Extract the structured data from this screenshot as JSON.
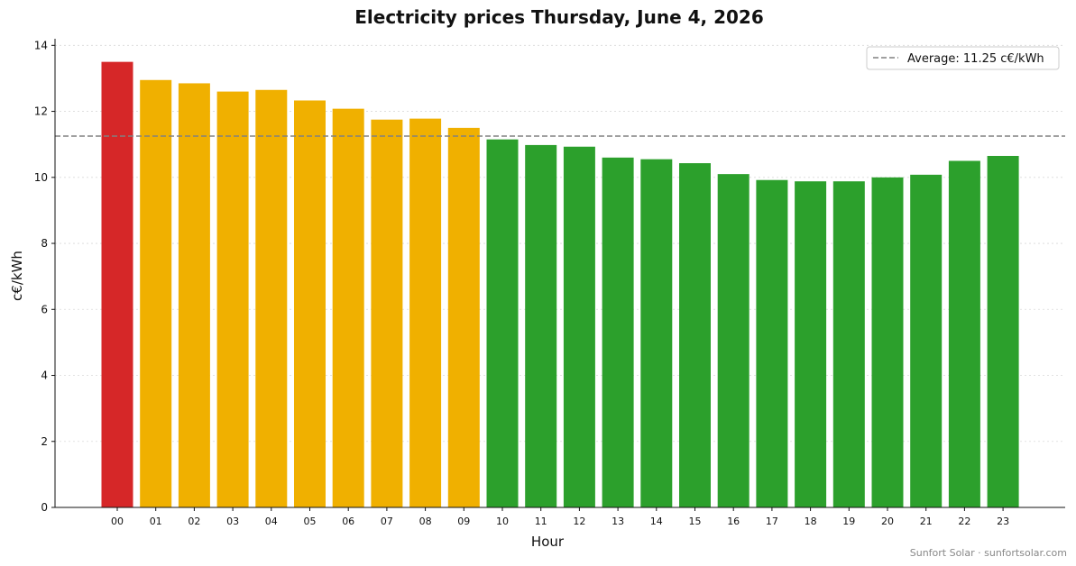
{
  "chart_data": {
    "type": "bar",
    "title": "Electricity prices Thursday, June 4, 2026",
    "xlabel": "Hour",
    "ylabel": "c€/kWh",
    "ylim": [
      0,
      14.2
    ],
    "yticks": [
      "0",
      "2",
      "4",
      "6",
      "8",
      "10",
      "12",
      "14"
    ],
    "categories": [
      "00",
      "01",
      "02",
      "03",
      "04",
      "05",
      "06",
      "07",
      "08",
      "09",
      "10",
      "11",
      "12",
      "13",
      "14",
      "15",
      "16",
      "17",
      "18",
      "19",
      "20",
      "21",
      "22",
      "23"
    ],
    "values": [
      13.5,
      12.95,
      12.85,
      12.6,
      12.65,
      12.33,
      12.08,
      11.75,
      11.78,
      11.5,
      11.15,
      10.98,
      10.93,
      10.6,
      10.55,
      10.43,
      10.1,
      9.92,
      9.88,
      9.88,
      10.0,
      10.08,
      10.5,
      10.65
    ],
    "bar_colors": [
      "#d62728",
      "#f0b000",
      "#f0b000",
      "#f0b000",
      "#f0b000",
      "#f0b000",
      "#f0b000",
      "#f0b000",
      "#f0b000",
      "#f0b000",
      "#2ca02c",
      "#2ca02c",
      "#2ca02c",
      "#2ca02c",
      "#2ca02c",
      "#2ca02c",
      "#2ca02c",
      "#2ca02c",
      "#2ca02c",
      "#2ca02c",
      "#2ca02c",
      "#2ca02c",
      "#2ca02c",
      "#2ca02c"
    ],
    "average": {
      "value": 11.25,
      "label": "Average: 11.25 c€/kWh",
      "color": "#808080"
    },
    "grid": "y-dotted",
    "legend_position": "top-right"
  },
  "credit": "Sunfort Solar · sunfortsolar.com"
}
